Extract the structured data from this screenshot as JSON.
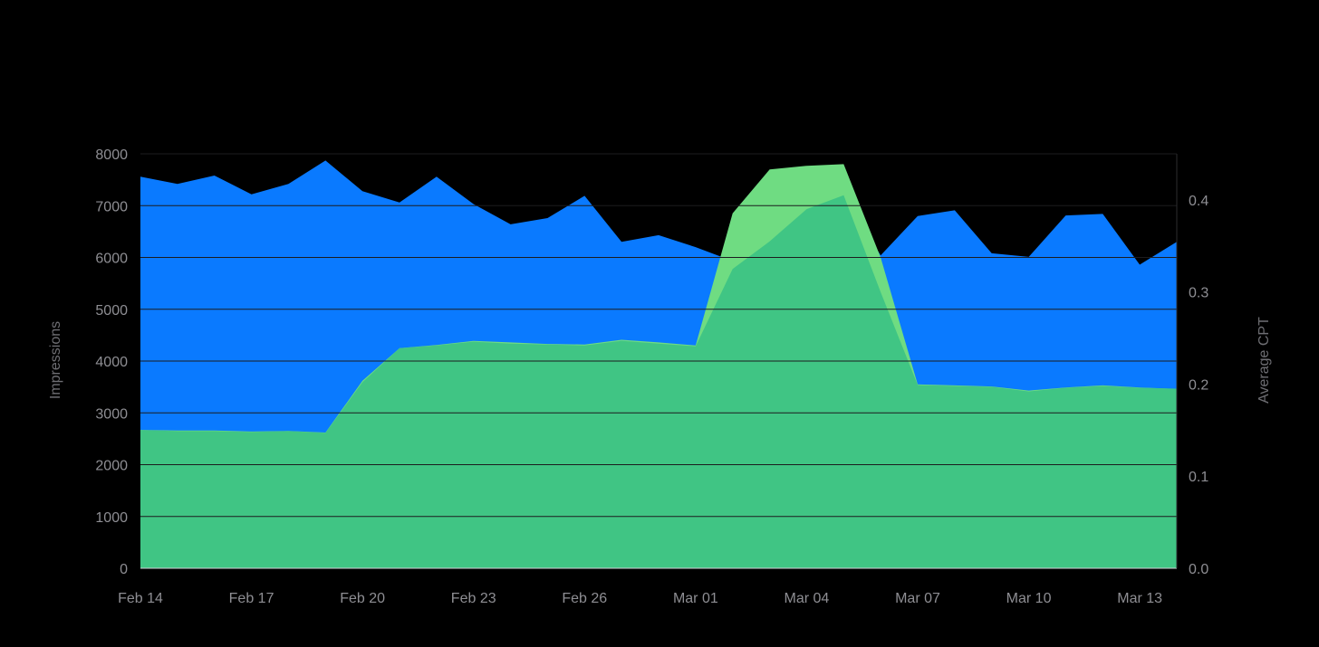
{
  "chart_data": {
    "type": "area",
    "x": [
      "Feb 14",
      "Feb 15",
      "Feb 16",
      "Feb 17",
      "Feb 18",
      "Feb 19",
      "Feb 20",
      "Feb 21",
      "Feb 22",
      "Feb 23",
      "Feb 24",
      "Feb 25",
      "Feb 26",
      "Feb 27",
      "Feb 28",
      "Mar 01",
      "Mar 02",
      "Mar 03",
      "Mar 04",
      "Mar 05",
      "Mar 06",
      "Mar 07",
      "Mar 08",
      "Mar 09",
      "Mar 10",
      "Mar 11",
      "Mar 12",
      "Mar 13",
      "Mar 14"
    ],
    "x_tick_labels": [
      "Feb 14",
      "Feb 17",
      "Feb 20",
      "Feb 23",
      "Feb 26",
      "Mar 01",
      "Mar 04",
      "Mar 07",
      "Mar 10",
      "Mar 13"
    ],
    "series": [
      {
        "axis": "left",
        "color": "#0a7aff",
        "values": [
          7560,
          7420,
          7580,
          7220,
          7420,
          7870,
          7280,
          7060,
          7560,
          7030,
          6640,
          6760,
          7190,
          6300,
          6430,
          6200,
          5930,
          6350,
          7000,
          7230,
          6040,
          6800,
          6910,
          6080,
          6010,
          6810,
          6840,
          5860,
          6300
        ]
      },
      {
        "axis": "left",
        "color": "#6fdc82",
        "values": [
          2670,
          2660,
          2660,
          2640,
          2650,
          2620,
          3620,
          4250,
          4310,
          4390,
          4360,
          4330,
          4320,
          4410,
          4360,
          4300,
          6850,
          7700,
          7770,
          7800,
          6000,
          3550,
          3530,
          3510,
          3430,
          3490,
          3530,
          3490,
          3460
        ]
      },
      {
        "axis": "right",
        "color": "#40c584",
        "values": [
          0.15,
          0.149,
          0.149,
          0.148,
          0.149,
          0.147,
          0.202,
          0.239,
          0.242,
          0.246,
          0.244,
          0.243,
          0.242,
          0.247,
          0.244,
          0.241,
          0.325,
          0.355,
          0.39,
          0.405,
          0.3,
          0.199,
          0.198,
          0.197,
          0.192,
          0.196,
          0.198,
          0.196,
          0.195
        ]
      }
    ],
    "y_left": {
      "label": "Impressions",
      "ylim": [
        0,
        8000
      ],
      "ticks": [
        0,
        1000,
        2000,
        3000,
        4000,
        5000,
        6000,
        7000,
        8000
      ]
    },
    "y_right": {
      "label": "Average CPT",
      "ylim": [
        0,
        0.45
      ],
      "ticks": [
        "0.0",
        "0.1",
        "0.2",
        "0.3",
        "0.4"
      ]
    },
    "grid": true,
    "legend": "none"
  }
}
